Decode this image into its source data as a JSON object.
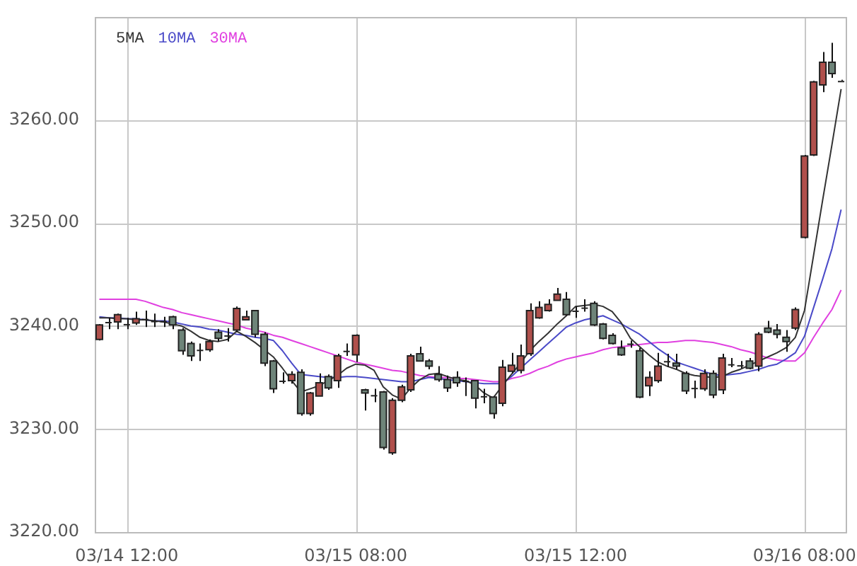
{
  "chart_data": {
    "type": "candlestick",
    "legend": "top left",
    "grid": true,
    "marker": "none",
    "categories": [
      null,
      null,
      null,
      "03/14 12:00",
      null,
      null,
      null,
      null,
      null,
      null,
      null,
      null,
      null,
      null,
      null,
      null,
      null,
      null,
      null,
      null,
      null,
      null,
      null,
      null,
      null,
      null,
      null,
      null,
      "03/15 08:00",
      null,
      null,
      null,
      null,
      null,
      null,
      null,
      null,
      null,
      null,
      null,
      null,
      null,
      null,
      null,
      null,
      null,
      null,
      null,
      null,
      null,
      null,
      null,
      "03/15 12:00",
      null,
      null,
      null,
      null,
      null,
      null,
      null,
      null,
      null,
      null,
      null,
      null,
      null,
      null,
      null,
      null,
      null,
      null,
      null,
      null,
      null,
      null,
      null,
      null,
      "03/16 08:00",
      null,
      null,
      null,
      null
    ],
    "ylim": [
      3220,
      3270
    ],
    "yticks": [
      {
        "value": 3220,
        "label": "3220.00"
      },
      {
        "value": 3230,
        "label": "3230.00"
      },
      {
        "value": 3240,
        "label": "3240.00"
      },
      {
        "value": 3250,
        "label": "3250.00"
      },
      {
        "value": 3260,
        "label": "3260.00"
      }
    ],
    "ohlc": [
      [
        3238.7,
        3240.2,
        3238.6,
        3240.1
      ],
      [
        3240.4,
        3240.8,
        3239.7,
        3240.4
      ],
      [
        3240.4,
        3241.2,
        3239.7,
        3241.1
      ],
      [
        3240.2,
        3240.8,
        3239.7,
        3240.2
      ],
      [
        3240.3,
        3241.4,
        3240.1,
        3240.7
      ],
      [
        3240.7,
        3241.5,
        3239.9,
        3240.7
      ],
      [
        3240.5,
        3241.2,
        3239.9,
        3240.5
      ],
      [
        3240.5,
        3240.9,
        3239.9,
        3240.5
      ],
      [
        3240.9,
        3241.0,
        3239.7,
        3240.1
      ],
      [
        3239.6,
        3239.8,
        3237.2,
        3237.6
      ],
      [
        3238.3,
        3238.5,
        3236.6,
        3237.1
      ],
      [
        3237.7,
        3238.3,
        3236.6,
        3237.7
      ],
      [
        3237.7,
        3238.7,
        3237.5,
        3238.5
      ],
      [
        3239.4,
        3239.7,
        3238.5,
        3238.8
      ],
      [
        3239.1,
        3239.8,
        3238.5,
        3239.1
      ],
      [
        3239.6,
        3241.9,
        3239.4,
        3241.7
      ],
      [
        3240.6,
        3241.5,
        3240.6,
        3240.9
      ],
      [
        3241.5,
        3241.5,
        3238.9,
        3239.2
      ],
      [
        3239.2,
        3239.4,
        3236.1,
        3236.4
      ],
      [
        3236.6,
        3236.7,
        3233.5,
        3233.9
      ],
      [
        3234.7,
        3235.5,
        3234.4,
        3234.7
      ],
      [
        3234.7,
        3235.6,
        3234.4,
        3235.3
      ],
      [
        3235.5,
        3235.8,
        3231.3,
        3231.5
      ],
      [
        3231.5,
        3233.6,
        3231.3,
        3233.5
      ],
      [
        3233.2,
        3235.4,
        3233.2,
        3234.5
      ],
      [
        3235.1,
        3235.3,
        3233.8,
        3234.0
      ],
      [
        3234.7,
        3237.3,
        3234.0,
        3237.1
      ],
      [
        3237.6,
        3238.3,
        3237.1,
        3237.6
      ],
      [
        3237.2,
        3239.2,
        3236.5,
        3239.1
      ],
      [
        3233.8,
        3233.9,
        3231.8,
        3233.5
      ],
      [
        3233.3,
        3233.9,
        3232.6,
        3233.3
      ],
      [
        3233.6,
        3233.7,
        3228.0,
        3228.2
      ],
      [
        3227.7,
        3233.0,
        3227.5,
        3232.8
      ],
      [
        3232.8,
        3234.3,
        3232.6,
        3234.1
      ],
      [
        3233.8,
        3237.3,
        3233.6,
        3237.1
      ],
      [
        3237.3,
        3238.0,
        3236.6,
        3236.6
      ],
      [
        3236.6,
        3236.8,
        3235.8,
        3236.1
      ],
      [
        3235.3,
        3236.1,
        3234.6,
        3234.8
      ],
      [
        3234.8,
        3235.2,
        3233.6,
        3234.0
      ],
      [
        3235.0,
        3235.6,
        3234.1,
        3234.5
      ],
      [
        3234.7,
        3235.0,
        3233.2,
        3234.7
      ],
      [
        3234.7,
        3234.7,
        3232.0,
        3233.0
      ],
      [
        3233.2,
        3233.9,
        3232.5,
        3233.2
      ],
      [
        3233.1,
        3233.2,
        3231.0,
        3231.5
      ],
      [
        3232.5,
        3236.7,
        3232.2,
        3236.0
      ],
      [
        3235.6,
        3237.4,
        3235.4,
        3236.2
      ],
      [
        3235.7,
        3238.2,
        3235.4,
        3237.1
      ],
      [
        3237.3,
        3242.2,
        3237.1,
        3241.5
      ],
      [
        3240.8,
        3242.4,
        3240.7,
        3241.8
      ],
      [
        3241.5,
        3242.6,
        3241.4,
        3242.1
      ],
      [
        3242.5,
        3243.7,
        3242.5,
        3243.1
      ],
      [
        3242.6,
        3243.3,
        3241.0,
        3241.1
      ],
      [
        3241.5,
        3241.9,
        3240.8,
        3241.5
      ],
      [
        3241.8,
        3242.6,
        3241.4,
        3241.8
      ],
      [
        3242.2,
        3242.4,
        3240.0,
        3240.1
      ],
      [
        3240.2,
        3240.3,
        3238.7,
        3238.8
      ],
      [
        3239.1,
        3239.3,
        3238.2,
        3238.3
      ],
      [
        3237.9,
        3238.6,
        3237.1,
        3237.2
      ],
      [
        3238.3,
        3238.6,
        3237.9,
        3238.3
      ],
      [
        3237.6,
        3237.9,
        3233.0,
        3233.1
      ],
      [
        3234.2,
        3235.6,
        3233.2,
        3235.0
      ],
      [
        3234.7,
        3237.4,
        3234.5,
        3236.1
      ],
      [
        3236.6,
        3237.3,
        3236.0,
        3236.6
      ],
      [
        3236.4,
        3237.3,
        3235.8,
        3236.1
      ],
      [
        3235.4,
        3235.6,
        3233.4,
        3233.7
      ],
      [
        3234.0,
        3234.7,
        3233.0,
        3234.0
      ],
      [
        3233.9,
        3235.8,
        3233.7,
        3235.4
      ],
      [
        3235.4,
        3235.7,
        3233.0,
        3233.3
      ],
      [
        3233.8,
        3237.3,
        3233.4,
        3236.9
      ],
      [
        3236.3,
        3236.9,
        3236.0,
        3236.3
      ],
      [
        3236.2,
        3236.6,
        3235.9,
        3236.2
      ],
      [
        3236.6,
        3236.9,
        3235.8,
        3235.9
      ],
      [
        3236.1,
        3239.4,
        3235.6,
        3239.2
      ],
      [
        3239.8,
        3240.5,
        3239.3,
        3239.4
      ],
      [
        3239.6,
        3240.2,
        3238.8,
        3239.2
      ],
      [
        3238.9,
        3239.6,
        3237.5,
        3238.5
      ],
      [
        3239.8,
        3241.8,
        3239.6,
        3241.6
      ],
      [
        3248.6,
        3256.6,
        3248.5,
        3256.5
      ],
      [
        3256.6,
        3263.8,
        3256.5,
        3263.7
      ],
      [
        3263.4,
        3266.6,
        3262.7,
        3265.6
      ],
      [
        3265.6,
        3267.5,
        3264.1,
        3264.5
      ],
      [
        3263.8,
        3263.9,
        3263.8,
        3263.8
      ]
    ],
    "colors": [
      "#b0504c",
      "#222222",
      "#b0504c",
      "#222222",
      "#b0504c",
      "#222222",
      "#222222",
      "#222222",
      "#6e8479",
      "#6e8479",
      "#6e8479",
      "#222222",
      "#b0504c",
      "#6e8479",
      "#222222",
      "#b0504c",
      "#b0504c",
      "#6e8479",
      "#6e8479",
      "#6e8479",
      "#222222",
      "#b0504c",
      "#6e8479",
      "#b0504c",
      "#b0504c",
      "#6e8479",
      "#b0504c",
      "#222222",
      "#b0504c",
      "#6e8479",
      "#222222",
      "#6e8479",
      "#b0504c",
      "#b0504c",
      "#b0504c",
      "#6e8479",
      "#6e8479",
      "#6e8479",
      "#6e8479",
      "#6e8479",
      "#222222",
      "#6e8479",
      "#222222",
      "#6e8479",
      "#b0504c",
      "#b0504c",
      "#b0504c",
      "#b0504c",
      "#b0504c",
      "#b0504c",
      "#b0504c",
      "#6e8479",
      "#222222",
      "#222222",
      "#6e8479",
      "#6e8479",
      "#6e8479",
      "#6e8479",
      "#222222",
      "#6e8479",
      "#b0504c",
      "#b0504c",
      "#222222",
      "#6e8479",
      "#6e8479",
      "#222222",
      "#b0504c",
      "#6e8479",
      "#b0504c",
      "#222222",
      "#222222",
      "#6e8479",
      "#b0504c",
      "#6e8479",
      "#6e8479",
      "#6e8479",
      "#b0504c",
      "#b0504c",
      "#b0504c",
      "#b0504c",
      "#6e8479",
      "#222222"
    ],
    "series": [
      {
        "name": "5MA",
        "type": "line",
        "color": "#333333",
        "values": [
          3240.8,
          3240.8,
          3240.7,
          3240.7,
          3240.6,
          3240.6,
          3240.5,
          3240.4,
          3240.2,
          3240.0,
          3239.5,
          3238.9,
          3238.6,
          3238.5,
          3238.7,
          3239.5,
          3239.0,
          3238.4,
          3237.7,
          3237.0,
          3235.9,
          3234.7,
          3233.6,
          3233.9,
          3234.2,
          3234.7,
          3235.2,
          3235.9,
          3236.3,
          3236.2,
          3235.7,
          3234.1,
          3233.3,
          3232.9,
          3234.0,
          3234.8,
          3235.3,
          3235.4,
          3235.1,
          3234.8,
          3234.7,
          3234.3,
          3233.5,
          3233.0,
          3234.2,
          3235.3,
          3236.4,
          3237.6,
          3238.5,
          3239.3,
          3240.2,
          3241.0,
          3241.9,
          3242.0,
          3242.1,
          3241.9,
          3241.4,
          3240.3,
          3238.8,
          3238.0,
          3237.2,
          3236.5,
          3236.1,
          3235.8,
          3235.4,
          3235.2,
          3235.1,
          3235.0,
          3235.1,
          3235.5,
          3235.8,
          3236.2,
          3236.6,
          3237.0,
          3237.4,
          3237.9,
          3238.9,
          3241.5,
          3246.9,
          3252.3,
          3257.6,
          3263.0
        ]
      },
      {
        "name": "10MA",
        "type": "line",
        "color": "#4a4ac8",
        "values": [
          3240.9,
          3240.8,
          3240.8,
          3240.7,
          3240.7,
          3240.6,
          3240.5,
          3240.5,
          3240.4,
          3240.2,
          3240.0,
          3239.9,
          3239.7,
          3239.6,
          3239.4,
          3239.2,
          3239.1,
          3238.9,
          3238.8,
          3238.6,
          3237.6,
          3236.4,
          3235.3,
          3235.2,
          3235.1,
          3235.0,
          3235.0,
          3235.1,
          3235.1,
          3235.0,
          3234.9,
          3234.8,
          3234.7,
          3234.6,
          3234.6,
          3234.8,
          3235.0,
          3234.9,
          3234.8,
          3234.7,
          3234.6,
          3234.5,
          3234.4,
          3234.4,
          3234.4,
          3235.1,
          3235.9,
          3236.7,
          3237.5,
          3238.3,
          3239.1,
          3239.9,
          3240.3,
          3240.6,
          3240.8,
          3241.0,
          3240.6,
          3240.2,
          3239.7,
          3239.2,
          3238.5,
          3237.8,
          3237.2,
          3236.5,
          3236.2,
          3235.9,
          3235.6,
          3235.3,
          3235.2,
          3235.3,
          3235.4,
          3235.6,
          3235.8,
          3236.1,
          3236.3,
          3236.8,
          3237.4,
          3239.0,
          3241.8,
          3244.6,
          3247.5,
          3251.3
        ]
      },
      {
        "name": "30MA",
        "type": "line",
        "color": "#e040e0",
        "values": [
          3242.6,
          3242.6,
          3242.6,
          3242.6,
          3242.6,
          3242.4,
          3242.1,
          3241.8,
          3241.6,
          3241.3,
          3241.1,
          3240.9,
          3240.7,
          3240.5,
          3240.3,
          3240.1,
          3239.8,
          3239.6,
          3239.4,
          3239.1,
          3238.9,
          3238.6,
          3238.3,
          3238.0,
          3237.7,
          3237.4,
          3237.1,
          3236.8,
          3236.5,
          3236.3,
          3236.1,
          3235.9,
          3235.7,
          3235.6,
          3235.4,
          3235.2,
          3235.1,
          3235.0,
          3235.0,
          3234.9,
          3234.9,
          3234.8,
          3234.7,
          3234.6,
          3234.6,
          3234.9,
          3235.1,
          3235.4,
          3235.8,
          3236.1,
          3236.5,
          3236.8,
          3237.0,
          3237.2,
          3237.4,
          3237.7,
          3237.9,
          3238.0,
          3238.1,
          3238.2,
          3238.3,
          3238.4,
          3238.4,
          3238.5,
          3238.6,
          3238.6,
          3238.5,
          3238.4,
          3238.2,
          3238.0,
          3237.7,
          3237.5,
          3237.2,
          3236.9,
          3236.7,
          3236.6,
          3236.6,
          3237.4,
          3238.9,
          3240.3,
          3241.6,
          3243.5
        ]
      }
    ]
  }
}
